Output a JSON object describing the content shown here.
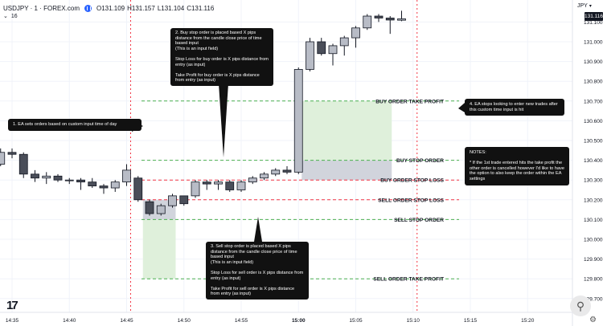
{
  "header": {
    "symbol": "USDJPY · 1 · FOREX.com",
    "open": "O131.109",
    "high": "H131.157",
    "low": "L131.104",
    "close": "C131.116",
    "indicator_count": "16",
    "currency": "JPY",
    "last_price": "131.116"
  },
  "annotations": {
    "note1": "1. EA sets orders based on custom input time of day",
    "note2": "2. Buy stop order is placed based X pips distance from the candle close price of time based input\n(This is an input field)\n\nStop Loss for buy order is X pips distance from entry (as input)\n\nTake Profit for buy order is X pips distance from entry (as input)",
    "note3": "3. Sell stop order is placed based X pips distance from the candle close price of time based input\n(This is an input field)\n\nStop Loss for sell order is X pips distance from entry (as input)\n\nTake Profit for sell order is X pips distance from entry (as input)",
    "note4": "4. EA stops looking to enter new trades after this custom time input is hit",
    "notes": "NOTES:\n\n* If the 1st trade entered hits the take profit the other order is cancelled however I'd like to have the option to also keep the order within the EA settings"
  },
  "colors": {
    "bull": "#b8bcc6",
    "bear": "#4a4e59",
    "green_line": "#4caf50",
    "red_line": "#f23645",
    "grid": "#f0f3fa",
    "profit_zone": "#dff0db",
    "loss_zone": "#d1d4dc"
  },
  "chart_data": {
    "type": "candlestick",
    "x_tick_labels": [
      "14:35",
      "14:40",
      "14:45",
      "14:50",
      "14:55",
      "15:00",
      "15:05",
      "15:10",
      "15:15",
      "15:20"
    ],
    "y_tick_labels": [
      "129.700",
      "129.800",
      "129.900",
      "130.000",
      "130.100",
      "130.200",
      "130.300",
      "130.400",
      "130.500",
      "130.600",
      "130.700",
      "130.800",
      "130.900",
      "131.000",
      "131.100"
    ],
    "ylim": [
      129.66,
      131.17
    ],
    "grid": true,
    "candles": [
      {
        "time": "14:34",
        "open": 130.38,
        "high": 130.46,
        "low": 130.37,
        "close": 130.44
      },
      {
        "time": "14:35",
        "open": 130.44,
        "high": 130.46,
        "low": 130.41,
        "close": 130.43
      },
      {
        "time": "14:36",
        "open": 130.43,
        "high": 130.44,
        "low": 130.31,
        "close": 130.33
      },
      {
        "time": "14:37",
        "open": 130.33,
        "high": 130.35,
        "low": 130.29,
        "close": 130.31
      },
      {
        "time": "14:38",
        "open": 130.31,
        "high": 130.34,
        "low": 130.28,
        "close": 130.32
      },
      {
        "time": "14:39",
        "open": 130.32,
        "high": 130.33,
        "low": 130.29,
        "close": 130.3
      },
      {
        "time": "14:40",
        "open": 130.3,
        "high": 130.31,
        "low": 130.28,
        "close": 130.3
      },
      {
        "time": "14:41",
        "open": 130.3,
        "high": 130.31,
        "low": 130.25,
        "close": 130.29
      },
      {
        "time": "14:42",
        "open": 130.29,
        "high": 130.31,
        "low": 130.26,
        "close": 130.27
      },
      {
        "time": "14:43",
        "open": 130.27,
        "high": 130.28,
        "low": 130.23,
        "close": 130.26
      },
      {
        "time": "14:44",
        "open": 130.26,
        "high": 130.3,
        "low": 130.24,
        "close": 130.29
      },
      {
        "time": "14:45",
        "open": 130.29,
        "high": 130.38,
        "low": 130.27,
        "close": 130.35
      },
      {
        "time": "14:46",
        "open": 130.31,
        "high": 130.32,
        "low": 130.19,
        "close": 130.2
      },
      {
        "time": "14:47",
        "open": 130.19,
        "high": 130.2,
        "low": 130.12,
        "close": 130.13
      },
      {
        "time": "14:48",
        "open": 130.13,
        "high": 130.18,
        "low": 130.12,
        "close": 130.17
      },
      {
        "time": "14:49",
        "open": 130.17,
        "high": 130.23,
        "low": 130.16,
        "close": 130.22
      },
      {
        "time": "14:50",
        "open": 130.22,
        "high": 130.22,
        "low": 130.17,
        "close": 130.18
      },
      {
        "time": "14:51",
        "open": 130.22,
        "high": 130.3,
        "low": 130.21,
        "close": 130.29
      },
      {
        "time": "14:52",
        "open": 130.29,
        "high": 130.3,
        "low": 130.25,
        "close": 130.28
      },
      {
        "time": "14:53",
        "open": 130.28,
        "high": 130.3,
        "low": 130.25,
        "close": 130.29
      },
      {
        "time": "14:54",
        "open": 130.29,
        "high": 130.3,
        "low": 130.24,
        "close": 130.25
      },
      {
        "time": "14:55",
        "open": 130.25,
        "high": 130.3,
        "low": 130.24,
        "close": 130.29
      },
      {
        "time": "14:56",
        "open": 130.29,
        "high": 130.32,
        "low": 130.28,
        "close": 130.31
      },
      {
        "time": "14:57",
        "open": 130.31,
        "high": 130.34,
        "low": 130.3,
        "close": 130.33
      },
      {
        "time": "14:58",
        "open": 130.33,
        "high": 130.36,
        "low": 130.32,
        "close": 130.35
      },
      {
        "time": "14:59",
        "open": 130.35,
        "high": 130.37,
        "low": 130.33,
        "close": 130.34
      },
      {
        "time": "15:00",
        "open": 130.34,
        "high": 130.87,
        "low": 130.33,
        "close": 130.86
      },
      {
        "time": "15:01",
        "open": 130.86,
        "high": 131.02,
        "low": 130.85,
        "close": 131.0
      },
      {
        "time": "15:02",
        "open": 131.0,
        "high": 131.02,
        "low": 130.93,
        "close": 130.94
      },
      {
        "time": "15:03",
        "open": 130.94,
        "high": 130.99,
        "low": 130.88,
        "close": 130.98
      },
      {
        "time": "15:04",
        "open": 130.98,
        "high": 131.03,
        "low": 130.93,
        "close": 131.02
      },
      {
        "time": "15:05",
        "open": 131.02,
        "high": 131.08,
        "low": 130.97,
        "close": 131.07
      },
      {
        "time": "15:06",
        "open": 131.07,
        "high": 131.14,
        "low": 131.06,
        "close": 131.13
      },
      {
        "time": "15:07",
        "open": 131.13,
        "high": 131.14,
        "low": 131.1,
        "close": 131.12
      },
      {
        "time": "15:08",
        "open": 131.12,
        "high": 131.13,
        "low": 131.04,
        "close": 131.11
      },
      {
        "time": "15:09",
        "open": 131.109,
        "high": 131.157,
        "low": 131.104,
        "close": 131.116
      }
    ],
    "events": [
      {
        "time": "14:45",
        "note": "note1"
      },
      {
        "time": "15:10",
        "note": "note4"
      }
    ],
    "levels": [
      {
        "label": "BUY ORDER TAKE PROFIT",
        "price": 130.7,
        "color": "green"
      },
      {
        "label": "BUY STOP ORDER",
        "price": 130.4,
        "color": "green"
      },
      {
        "label": "BUY ORDER STOP LOSS",
        "price": 130.3,
        "color": "red"
      },
      {
        "label": "SELL ORDER STOP LOSS",
        "price": 130.2,
        "color": "red"
      },
      {
        "label": "SELL STOP ORDER",
        "price": 130.1,
        "color": "green"
      },
      {
        "label": "SELL ORDER TAKE PROFIT",
        "price": 129.8,
        "color": "green"
      }
    ]
  }
}
